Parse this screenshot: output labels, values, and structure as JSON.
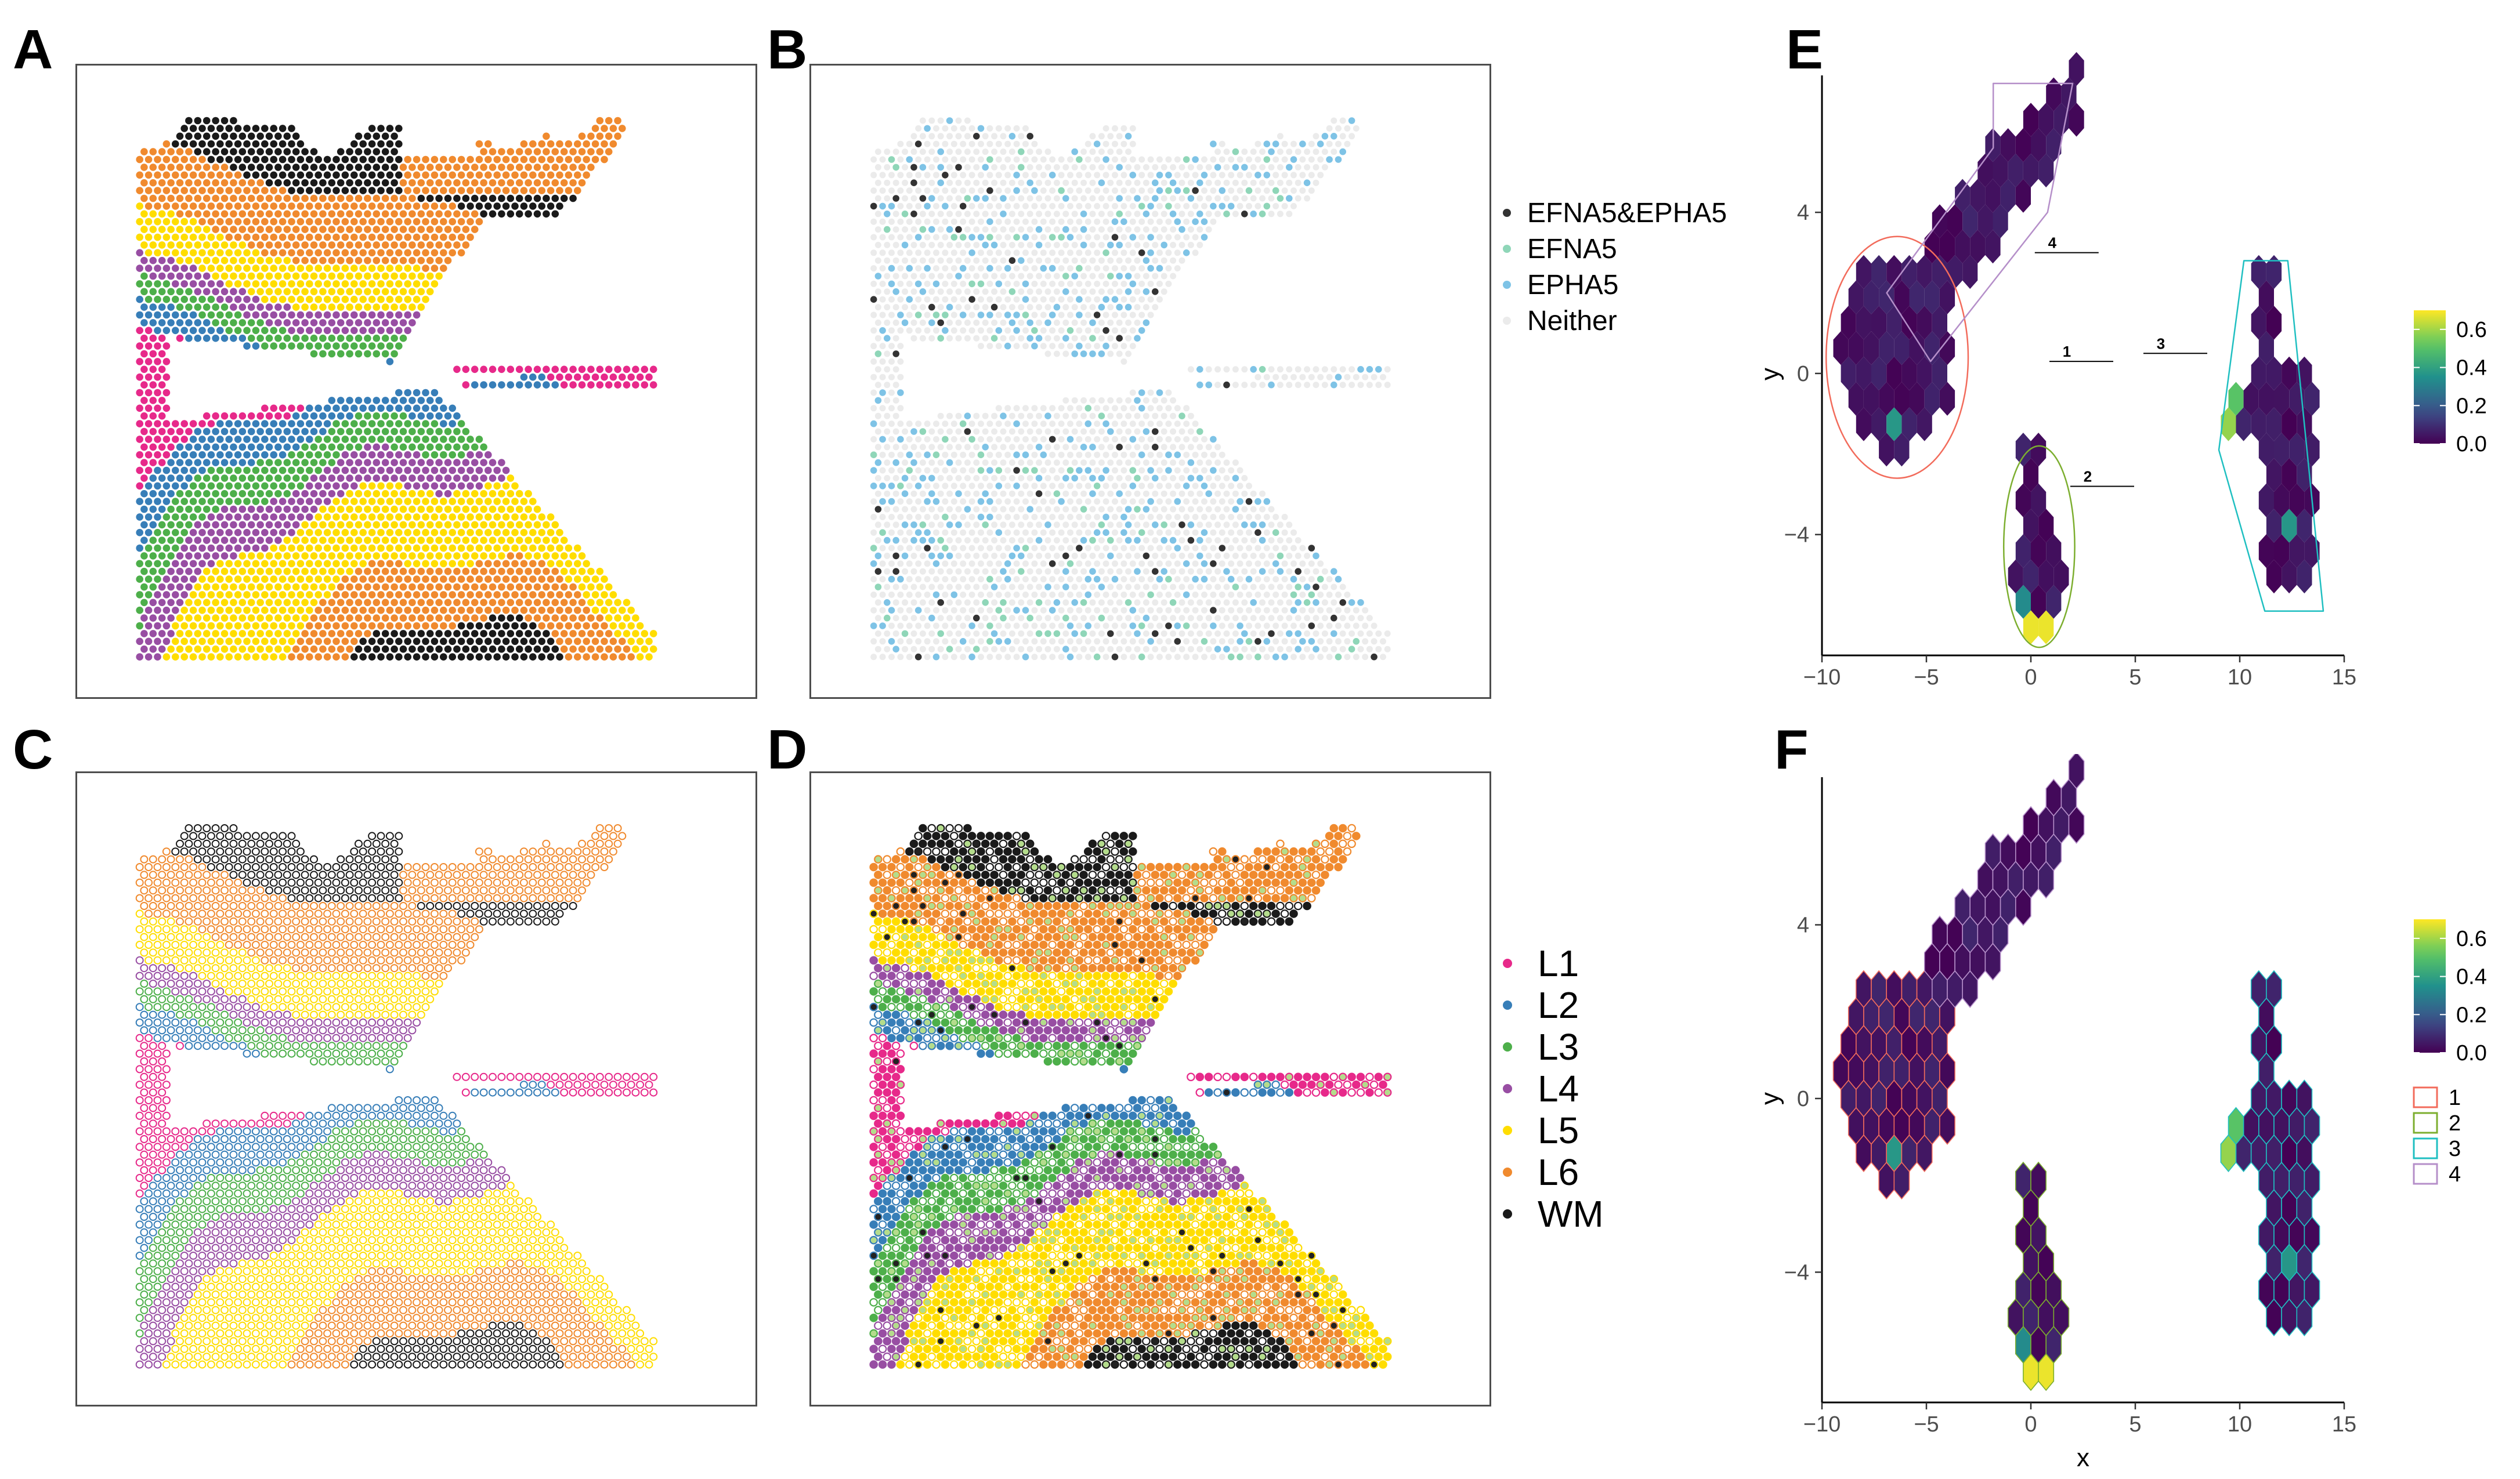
{
  "panels": {
    "A": {
      "letter": "A"
    },
    "B": {
      "letter": "B"
    },
    "C": {
      "letter": "C"
    },
    "D": {
      "letter": "D"
    },
    "E": {
      "letter": "E"
    },
    "F": {
      "letter": "F"
    }
  },
  "colors": {
    "L1": "#e7298a",
    "L2": "#377eb8",
    "L3": "#4daf4a",
    "L4": "#984ea3",
    "L5": "#ffdd00",
    "L6": "#f08a2e",
    "WM": "#1a1a1a",
    "EFNA5&EPHA5": "#333333",
    "EFNA5": "#8fd6b8",
    "EPHA5": "#7ec3e6",
    "Neither": "#ebebeb"
  },
  "legend_b": [
    {
      "key": "EFNA5&EPHA5",
      "label": "EFNA5&EPHA5"
    },
    {
      "key": "EFNA5",
      "label": "EFNA5"
    },
    {
      "key": "EPHA5",
      "label": "EPHA5"
    },
    {
      "key": "Neither",
      "label": "Neither"
    }
  ],
  "legend_layers": [
    {
      "key": "L1",
      "label": "L1"
    },
    {
      "key": "L2",
      "label": "L2"
    },
    {
      "key": "L3",
      "label": "L3"
    },
    {
      "key": "L4",
      "label": "L4"
    },
    {
      "key": "L5",
      "label": "L5"
    },
    {
      "key": "L6",
      "label": "L6"
    },
    {
      "key": "WM",
      "label": "WM"
    }
  ],
  "chart_data": [
    {
      "panel": "E",
      "type": "heatmap",
      "subtype": "hexbin embedding",
      "xlabel": "",
      "ylabel": "y",
      "xlim": [
        -10,
        15
      ],
      "ylim": [
        -7,
        7.4
      ],
      "xticks": [
        -10,
        -5,
        0,
        5,
        10,
        15
      ],
      "xtick_labels": [
        "−10",
        "−5",
        "0",
        "5",
        "10",
        "15"
      ],
      "yticks": [
        -4,
        0,
        4
      ],
      "ytick_labels": [
        "−4",
        "0",
        "4"
      ],
      "colorbar": {
        "ticks": [
          0.0,
          0.2,
          0.4,
          0.6
        ],
        "tick_labels": [
          "0.0",
          "0.2",
          "0.4",
          "0.6"
        ],
        "range": [
          0,
          0.7
        ]
      },
      "clusters": [
        {
          "name": "1",
          "label_x": 2.0,
          "label_y": 0.5,
          "outline_color": "#f26b5b"
        },
        {
          "name": "2",
          "label_x": 3.0,
          "label_y": -2.6,
          "outline_color": "#7cae2f"
        },
        {
          "name": "3",
          "label_x": 6.5,
          "label_y": 0.7,
          "outline_color": "#1fbfc1"
        },
        {
          "name": "4",
          "label_x": 1.3,
          "label_y": 3.2,
          "outline_color": "#b58fc9"
        }
      ]
    },
    {
      "panel": "F",
      "type": "heatmap",
      "subtype": "hexbin embedding",
      "xlabel": "x",
      "ylabel": "y",
      "xlim": [
        -10,
        15
      ],
      "ylim": [
        -7,
        7.4
      ],
      "xticks": [
        -10,
        -5,
        0,
        5,
        10,
        15
      ],
      "xtick_labels": [
        "−10",
        "−5",
        "0",
        "5",
        "10",
        "15"
      ],
      "yticks": [
        -4,
        0,
        4
      ],
      "ytick_labels": [
        "−4",
        "0",
        "4"
      ],
      "colorbar": {
        "ticks": [
          0.0,
          0.2,
          0.4,
          0.6
        ],
        "tick_labels": [
          "0.0",
          "0.2",
          "0.4",
          "0.6"
        ],
        "range": [
          0,
          0.7
        ]
      },
      "cluster_legend": [
        {
          "name": "1",
          "color": "#f26b5b"
        },
        {
          "name": "2",
          "color": "#7cae2f"
        },
        {
          "name": "3",
          "color": "#1fbfc1"
        },
        {
          "name": "4",
          "color": "#b58fc9"
        }
      ]
    }
  ]
}
